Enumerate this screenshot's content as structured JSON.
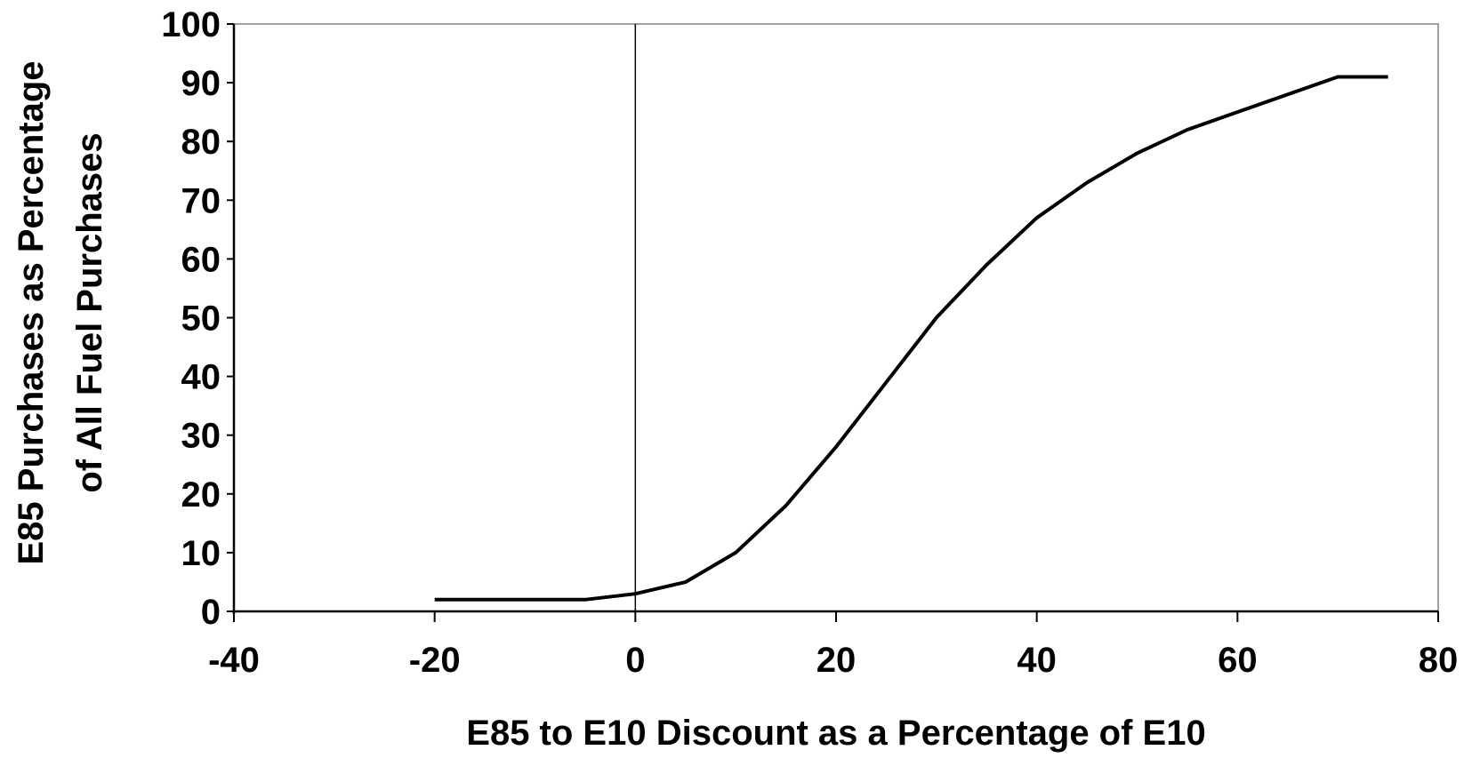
{
  "chart_data": {
    "type": "line",
    "title": "",
    "xlabel": "E85 to E10 Discount as a Percentage of E10",
    "ylabel_line1": "E85 Purchases as Percentage",
    "ylabel_line2": "of All Fuel Purchases",
    "xlim": [
      -40,
      80
    ],
    "ylim": [
      0,
      100
    ],
    "xticks": [
      -40,
      -20,
      0,
      20,
      40,
      60,
      80
    ],
    "yticks": [
      0,
      10,
      20,
      30,
      40,
      50,
      60,
      70,
      80,
      90,
      100
    ],
    "grid": false,
    "legend": "none",
    "colors": {
      "line": "#000000",
      "axis": "#000000",
      "background": "#ffffff"
    },
    "series": [
      {
        "x": [
          -20,
          -15,
          -10,
          -5,
          0,
          5,
          10,
          15,
          20,
          25,
          30,
          35,
          40,
          45,
          50,
          55,
          60,
          65,
          70,
          75
        ],
        "y": [
          2,
          2,
          2,
          2,
          3,
          5,
          10,
          18,
          28,
          39,
          50,
          59,
          67,
          73,
          78,
          82,
          85,
          88,
          91,
          91
        ]
      }
    ]
  }
}
